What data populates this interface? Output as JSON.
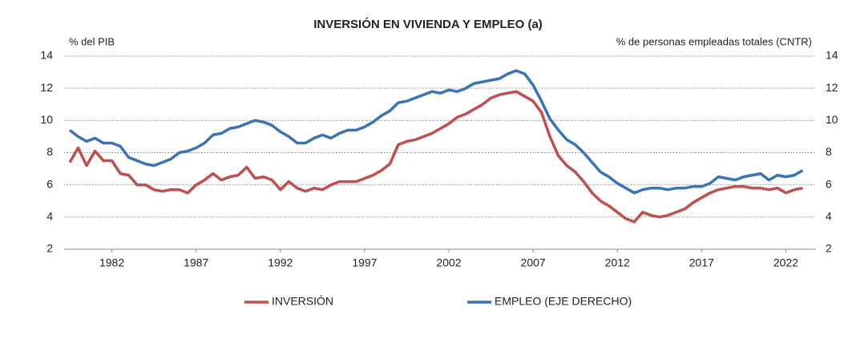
{
  "chart_data": {
    "type": "line",
    "title": "INVERSIÓN EN VIVIENDA Y EMPLEO (a)",
    "ylabel": "% del PIB",
    "y2label": "% de personas empleadas totales (CNTR)",
    "x": [
      1980,
      1980.5,
      1981,
      1981.5,
      1982,
      1982.5,
      1983,
      1983.5,
      1984,
      1984.5,
      1985,
      1985.5,
      1986,
      1986.5,
      1987,
      1987.5,
      1988,
      1988.5,
      1989,
      1989.5,
      1990,
      1990.5,
      1991,
      1991.5,
      1992,
      1992.5,
      1993,
      1993.5,
      1994,
      1994.5,
      1995,
      1995.5,
      1996,
      1996.5,
      1997,
      1997.5,
      1998,
      1998.5,
      1999,
      1999.5,
      2000,
      2000.5,
      2001,
      2001.5,
      2002,
      2002.5,
      2003,
      2003.5,
      2004,
      2004.5,
      2005,
      2005.5,
      2006,
      2006.5,
      2007,
      2007.5,
      2008,
      2008.5,
      2009,
      2009.5,
      2010,
      2010.5,
      2011,
      2011.5,
      2012,
      2012.5,
      2013,
      2013.5,
      2014,
      2014.5,
      2015,
      2015.5,
      2016,
      2016.5,
      2017,
      2017.5,
      2018,
      2018.5,
      2019,
      2019.5,
      2020,
      2020.5,
      2021,
      2021.5,
      2022,
      2022.5,
      2023,
      2023.5
    ],
    "series": [
      {
        "name": "INVERSIÓN",
        "color": "#c0504d",
        "values": [
          7.4,
          8.3,
          7.2,
          8.1,
          7.5,
          7.5,
          6.7,
          6.6,
          6.0,
          6.0,
          5.7,
          5.6,
          5.7,
          5.7,
          5.5,
          6.0,
          6.3,
          6.7,
          6.3,
          6.5,
          6.6,
          7.1,
          6.4,
          6.5,
          6.3,
          5.7,
          6.2,
          5.8,
          5.6,
          5.8,
          5.7,
          6.0,
          6.2,
          6.2,
          6.2,
          6.4,
          6.6,
          6.9,
          7.3,
          8.5,
          8.7,
          8.8,
          9.0,
          9.2,
          9.5,
          9.8,
          10.2,
          10.4,
          10.7,
          11.0,
          11.4,
          11.6,
          11.7,
          11.8,
          11.5,
          11.2,
          10.5,
          9.0,
          7.8,
          7.2,
          6.8,
          6.2,
          5.5,
          5.0,
          4.7,
          4.3,
          3.9,
          3.7,
          4.3,
          4.1,
          4.0,
          4.1,
          4.3,
          4.5,
          4.9,
          5.2,
          5.5,
          5.7,
          5.8,
          5.9,
          5.9,
          5.8,
          5.8,
          5.7,
          5.8,
          5.5,
          5.7,
          5.8
        ]
      },
      {
        "name": "EMPLEO (EJE DERECHO)",
        "color": "#3a73b8",
        "axis": "y2",
        "values": [
          9.4,
          9.0,
          8.7,
          8.9,
          8.6,
          8.6,
          8.4,
          7.7,
          7.5,
          7.3,
          7.2,
          7.4,
          7.6,
          8.0,
          8.1,
          8.3,
          8.6,
          9.1,
          9.2,
          9.5,
          9.6,
          9.8,
          10.0,
          9.9,
          9.7,
          9.3,
          9.0,
          8.6,
          8.6,
          8.9,
          9.1,
          8.9,
          9.2,
          9.4,
          9.4,
          9.6,
          9.9,
          10.3,
          10.6,
          11.1,
          11.2,
          11.4,
          11.6,
          11.8,
          11.7,
          11.9,
          11.8,
          12.0,
          12.3,
          12.4,
          12.5,
          12.6,
          12.9,
          13.1,
          12.9,
          12.2,
          11.2,
          10.1,
          9.4,
          8.8,
          8.5,
          8.0,
          7.4,
          6.8,
          6.5,
          6.1,
          5.8,
          5.5,
          5.7,
          5.8,
          5.8,
          5.7,
          5.8,
          5.8,
          5.9,
          5.9,
          6.1,
          6.5,
          6.4,
          6.3,
          6.5,
          6.6,
          6.7,
          6.3,
          6.6,
          6.5,
          6.6,
          6.9
        ]
      }
    ],
    "xlim": [
      1980,
      2024
    ],
    "xticks": [
      {
        "value": 1982.5,
        "label": "1982"
      },
      {
        "value": 1987.5,
        "label": "1987"
      },
      {
        "value": 1992.5,
        "label": "1992"
      },
      {
        "value": 1997.5,
        "label": "1997"
      },
      {
        "value": 2002.5,
        "label": "2002"
      },
      {
        "value": 2007.5,
        "label": "2007"
      },
      {
        "value": 2012.5,
        "label": "2012"
      },
      {
        "value": 2017.5,
        "label": "2017"
      },
      {
        "value": 2022.5,
        "label": "2022"
      }
    ],
    "ylim": [
      2,
      14
    ],
    "yticks": [
      2,
      4,
      6,
      8,
      10,
      12,
      14
    ],
    "y2lim": [
      2,
      14
    ],
    "y2ticks": [
      2,
      4,
      6,
      8,
      10,
      12,
      14
    ],
    "grid": true,
    "legend": "bottom"
  }
}
